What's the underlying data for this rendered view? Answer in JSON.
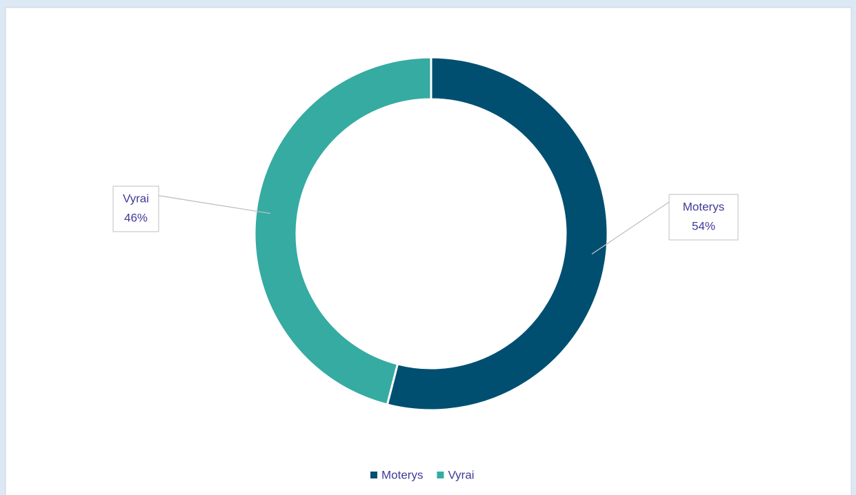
{
  "chart_data": {
    "type": "pie",
    "donut": true,
    "categories": [
      "Moterys",
      "Vyrai"
    ],
    "values": [
      54,
      46
    ],
    "value_labels": [
      "54%",
      "46%"
    ],
    "colors": [
      "#004f71",
      "#36aba2"
    ],
    "legend": "bottom"
  }
}
